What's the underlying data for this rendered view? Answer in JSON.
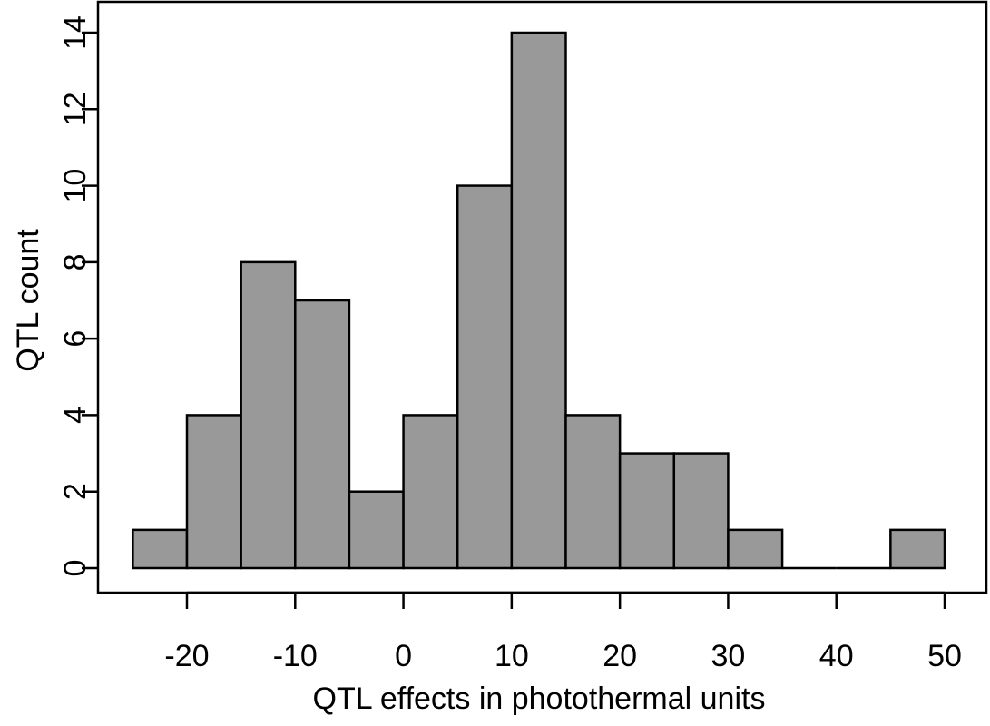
{
  "chart_data": {
    "type": "bar",
    "title": "",
    "xlabel": "QTL effects in photothermal units",
    "ylabel": "QTL count",
    "bin_width": 5,
    "bins": [
      {
        "start": -25,
        "end": -20,
        "count": 1
      },
      {
        "start": -20,
        "end": -15,
        "count": 4
      },
      {
        "start": -15,
        "end": -10,
        "count": 8
      },
      {
        "start": -10,
        "end": -5,
        "count": 7
      },
      {
        "start": -5,
        "end": 0,
        "count": 2
      },
      {
        "start": 0,
        "end": 5,
        "count": 4
      },
      {
        "start": 5,
        "end": 10,
        "count": 10
      },
      {
        "start": 10,
        "end": 15,
        "count": 14
      },
      {
        "start": 15,
        "end": 20,
        "count": 4
      },
      {
        "start": 20,
        "end": 25,
        "count": 3
      },
      {
        "start": 25,
        "end": 30,
        "count": 3
      },
      {
        "start": 30,
        "end": 35,
        "count": 1
      },
      {
        "start": 35,
        "end": 40,
        "count": 0
      },
      {
        "start": 40,
        "end": 45,
        "count": 0
      },
      {
        "start": 45,
        "end": 50,
        "count": 1
      }
    ],
    "xlim": [
      -20,
      50
    ],
    "ylim": [
      0,
      14
    ],
    "x_ticks": [
      -20,
      -10,
      0,
      10,
      20,
      30,
      40,
      50
    ],
    "y_ticks": [
      0,
      2,
      4,
      6,
      8,
      10,
      12,
      14
    ],
    "x_tick_labels": [
      "-20",
      "-10",
      "0",
      "10",
      "20",
      "30",
      "40",
      "50"
    ],
    "y_tick_labels": [
      "0",
      "2",
      "4",
      "6",
      "8",
      "10",
      "12",
      "14"
    ],
    "grid": false,
    "legend": "none",
    "bar_color": "#999999",
    "edge_color": "#000000"
  }
}
